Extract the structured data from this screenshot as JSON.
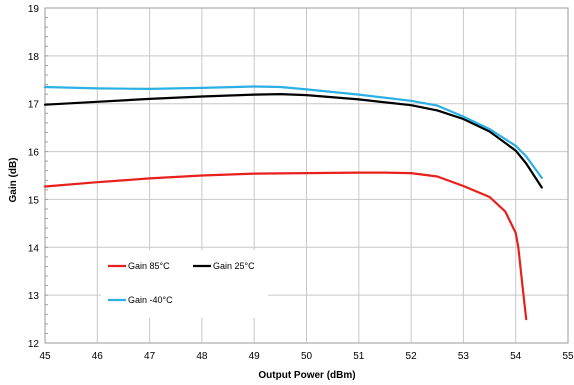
{
  "chart_data": {
    "type": "line",
    "title": "",
    "xlabel": "Output Power (dBm)",
    "ylabel": "Gain (dB)",
    "xlim": [
      45,
      55
    ],
    "ylim": [
      12,
      19
    ],
    "x_ticks": [
      "45",
      "46",
      "47",
      "48",
      "49",
      "50",
      "51",
      "52",
      "53",
      "54",
      "55"
    ],
    "y_ticks": [
      "12",
      "13",
      "14",
      "15",
      "16",
      "17",
      "18",
      "19"
    ],
    "grid": true,
    "legend_position": "lower-left",
    "series": [
      {
        "name": "Gain 85°C",
        "color": "#e8201c",
        "points": [
          [
            45.0,
            15.27
          ],
          [
            46.0,
            15.36
          ],
          [
            47.0,
            15.44
          ],
          [
            48.0,
            15.5
          ],
          [
            49.0,
            15.54
          ],
          [
            50.0,
            15.55
          ],
          [
            51.0,
            15.56
          ],
          [
            51.5,
            15.56
          ],
          [
            52.0,
            15.55
          ],
          [
            52.5,
            15.48
          ],
          [
            53.0,
            15.28
          ],
          [
            53.5,
            15.05
          ],
          [
            53.8,
            14.75
          ],
          [
            54.0,
            14.3
          ],
          [
            54.05,
            14.0
          ],
          [
            54.1,
            13.5
          ],
          [
            54.15,
            13.0
          ],
          [
            54.2,
            12.5
          ]
        ]
      },
      {
        "name": "Gain 25°C",
        "color": "#000000",
        "points": [
          [
            45.0,
            16.98
          ],
          [
            46.0,
            17.04
          ],
          [
            47.0,
            17.1
          ],
          [
            48.0,
            17.15
          ],
          [
            49.0,
            17.19
          ],
          [
            49.5,
            17.2
          ],
          [
            50.0,
            17.18
          ],
          [
            51.0,
            17.09
          ],
          [
            52.0,
            16.97
          ],
          [
            52.5,
            16.86
          ],
          [
            53.0,
            16.68
          ],
          [
            53.5,
            16.42
          ],
          [
            54.0,
            16.02
          ],
          [
            54.2,
            15.75
          ],
          [
            54.5,
            15.25
          ]
        ]
      },
      {
        "name": "Gain -40°C",
        "color": "#2cb0e4",
        "points": [
          [
            45.0,
            17.35
          ],
          [
            46.0,
            17.32
          ],
          [
            47.0,
            17.31
          ],
          [
            48.0,
            17.33
          ],
          [
            49.0,
            17.36
          ],
          [
            49.5,
            17.35
          ],
          [
            50.0,
            17.3
          ],
          [
            51.0,
            17.19
          ],
          [
            52.0,
            17.06
          ],
          [
            52.5,
            16.96
          ],
          [
            53.0,
            16.73
          ],
          [
            53.5,
            16.47
          ],
          [
            54.0,
            16.12
          ],
          [
            54.2,
            15.9
          ],
          [
            54.5,
            15.45
          ]
        ]
      }
    ]
  }
}
